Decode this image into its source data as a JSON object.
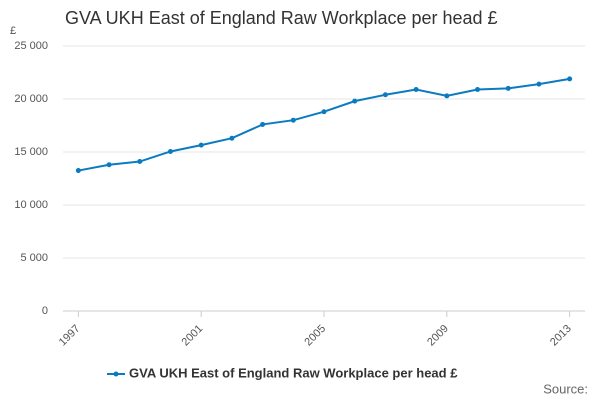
{
  "chart_data": {
    "type": "line",
    "title": "GVA UKH East of England Raw Workplace per head £",
    "y_label": "£",
    "x": [
      1997,
      1998,
      1999,
      2000,
      2001,
      2002,
      2003,
      2004,
      2005,
      2006,
      2007,
      2008,
      2009,
      2010,
      2011,
      2012,
      2013
    ],
    "series": [
      {
        "name": "GVA UKH East of England Raw Workplace per head £",
        "color": "#0b7bc1",
        "values": [
          13250,
          13800,
          14100,
          15050,
          15650,
          16300,
          17600,
          18000,
          18800,
          19800,
          20400,
          20900,
          20300,
          20900,
          21000,
          21400,
          21900
        ]
      }
    ],
    "xlim": [
      1996.5,
      2013.5
    ],
    "xticks": [
      1997,
      2001,
      2005,
      2009,
      2013
    ],
    "ylim": [
      0,
      25000
    ],
    "yticks": [
      0,
      {
        "value": 5000,
        "label": "5 000"
      },
      {
        "value": 10000,
        "label": "10 000"
      },
      {
        "value": 15000,
        "label": "15 000"
      },
      {
        "value": 20000,
        "label": "20 000"
      },
      {
        "value": 25000,
        "label": "25 000"
      }
    ],
    "grid": true,
    "legend": "bottom",
    "source": "Source:"
  }
}
